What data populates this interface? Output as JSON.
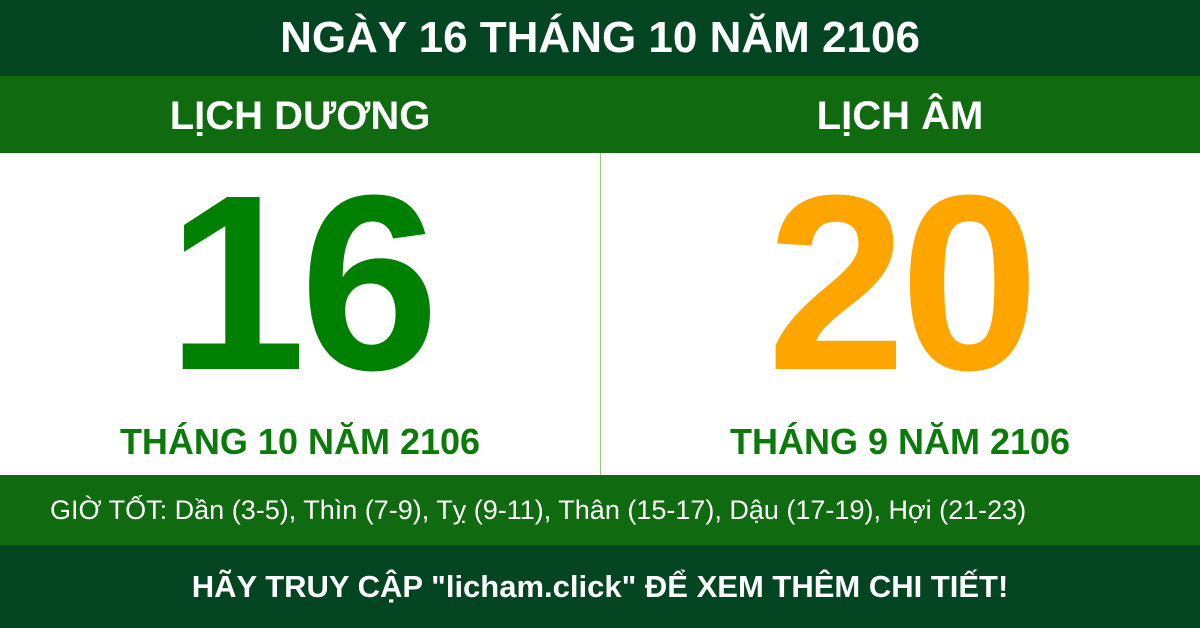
{
  "title": "NGÀY 16 THÁNG 10 NĂM 2106",
  "solar": {
    "label": "LỊCH DƯƠNG",
    "day": "16",
    "month_year": "THÁNG 10 NĂM 2106"
  },
  "lunar": {
    "label": "LỊCH ÂM",
    "day": "20",
    "month_year": "THÁNG 9 NĂM 2106"
  },
  "good_hours": "GIỜ TỐT: Dần (3-5), Thìn (7-9), Tỵ (9-11), Thân (15-17), Dậu (17-19), Hợi (21-23)",
  "footer": "HÃY TRUY CẬP \"licham.click\" ĐỂ XEM THÊM CHI TIẾT!",
  "colors": {
    "dark_green": "#034520",
    "band_green": "#106b10",
    "solar_number": "#008000",
    "lunar_number": "#ffa500"
  }
}
